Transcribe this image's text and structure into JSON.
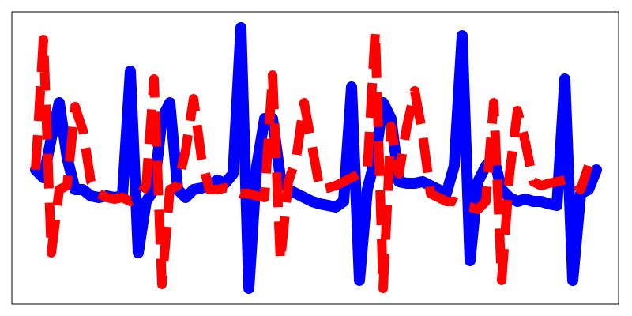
{
  "chart_data": {
    "type": "line",
    "x": [
      0,
      1,
      2,
      3,
      4,
      5,
      6,
      7,
      8,
      9,
      10,
      11,
      12,
      13,
      14,
      15,
      16,
      17,
      18,
      19,
      20,
      21,
      22,
      23,
      24,
      25,
      26,
      27,
      28,
      29,
      30,
      31,
      32,
      33,
      34,
      35,
      36,
      37,
      38,
      39,
      40,
      41,
      42,
      43,
      44,
      45,
      46,
      47,
      48,
      49,
      50,
      51,
      52,
      53,
      54,
      55,
      56,
      57,
      58,
      59,
      60,
      61,
      62,
      63,
      64,
      65,
      66,
      67,
      68,
      69,
      70,
      71
    ],
    "xlim": [
      -3,
      73.8
    ],
    "ylim": [
      -185,
      185
    ],
    "series": [
      {
        "color": "blue",
        "style": "solid",
        "values": [
          -15,
          -25,
          25,
          70,
          0,
          -40,
          -40,
          -48,
          -50,
          -48,
          -50,
          -48,
          110,
          -120,
          -55,
          -40,
          50,
          70,
          -40,
          -50,
          -40,
          -38,
          -35,
          -28,
          -32,
          -20,
          165,
          -165,
          -10,
          50,
          50,
          -25,
          -40,
          -45,
          -50,
          -55,
          -58,
          -60,
          -62,
          -55,
          90,
          -155,
          -40,
          0,
          70,
          50,
          -30,
          -32,
          -32,
          -30,
          -35,
          -40,
          -45,
          -10,
          155,
          -130,
          -30,
          -10,
          0,
          -40,
          -50,
          -55,
          -52,
          -55,
          -55,
          -58,
          -60,
          100,
          -155,
          -45,
          -40,
          -15
        ]
      },
      {
        "color": "red",
        "style": "dashed",
        "values": [
          -15,
          150,
          -120,
          -40,
          -35,
          65,
          35,
          -30,
          -45,
          -50,
          -52,
          -50,
          -55,
          -50,
          -35,
          100,
          -160,
          -40,
          -35,
          10,
          75,
          0,
          -40,
          -40,
          -38,
          -40,
          -45,
          -45,
          -48,
          -50,
          105,
          -130,
          -30,
          0,
          70,
          15,
          -40,
          -38,
          -35,
          -30,
          -25,
          -20,
          -15,
          160,
          -165,
          40,
          -20,
          40,
          85,
          30,
          -45,
          -50,
          -55,
          -55,
          -60,
          -62,
          -65,
          -55,
          70,
          -155,
          -20,
          60,
          20,
          -30,
          -35,
          -32,
          -30,
          -28,
          -28,
          -40,
          -10,
          null
        ]
      }
    ]
  }
}
